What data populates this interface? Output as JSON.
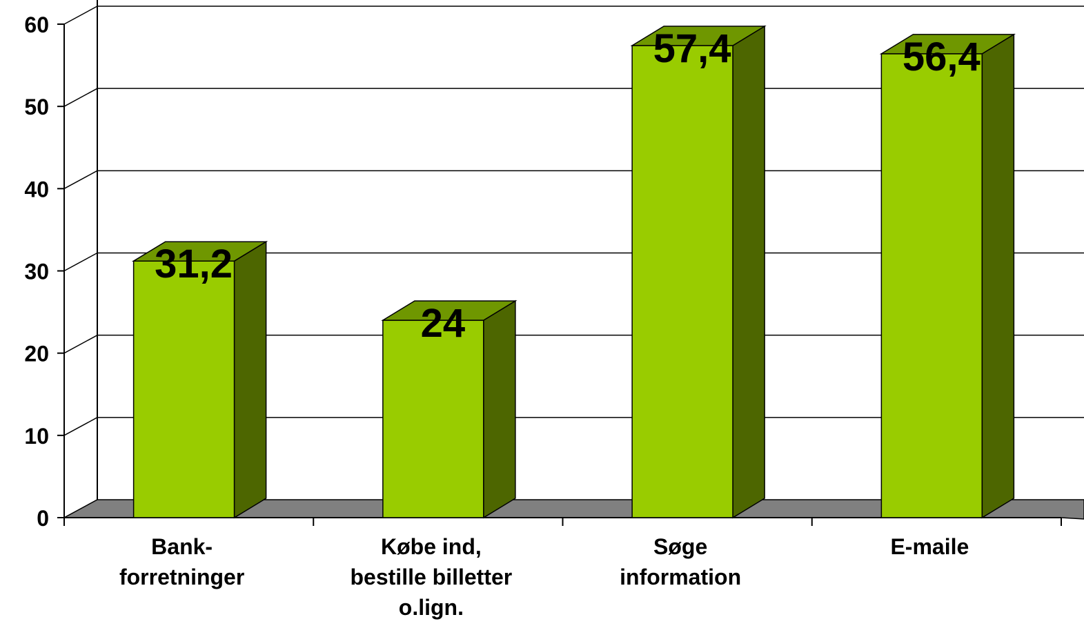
{
  "chart_data": {
    "type": "bar",
    "style": "3d",
    "categories": [
      [
        "Bank-",
        "forretninger"
      ],
      [
        "Købe ind,",
        "bestille billetter",
        "o.lign."
      ],
      [
        "Søge",
        "information"
      ],
      [
        "E-maile"
      ]
    ],
    "values": [
      31.2,
      24,
      57.4,
      56.4
    ],
    "data_labels": [
      "31,2",
      "24",
      "57,4",
      "56,4"
    ],
    "y_ticks": [
      "0",
      "10",
      "20",
      "30",
      "40",
      "50",
      "60"
    ],
    "ylim": [
      0,
      60
    ],
    "grid": true,
    "legend": "none",
    "colors": {
      "bar_front": "#99cc00",
      "bar_top": "#6f9700",
      "bar_side": "#4d6600",
      "floor": "#808080",
      "walls": "#ffffff",
      "grid": "#000000"
    }
  }
}
